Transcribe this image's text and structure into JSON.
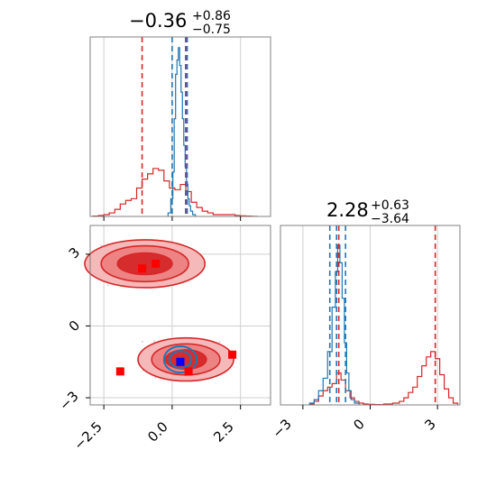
{
  "colors": {
    "red": "#d62728",
    "blue": "#1f77b4",
    "marker_red": "#ff0000",
    "marker_blue": "#0000ff",
    "grid": "#cfcfcf",
    "axes": "#808080"
  },
  "chart_data": [
    {
      "type": "histogram",
      "panel": "top-left",
      "title": {
        "value": "−0.36",
        "plus": "+0.86",
        "minus": "−0.75"
      },
      "xlim": [
        -3.0,
        3.6
      ],
      "grid": true,
      "red_vlines": [
        -1.1,
        0.5
      ],
      "blue_vlines": [
        0.0,
        0.55
      ],
      "purple_vline": 0.5,
      "red_hist": {
        "x": [
          -2.8,
          -2.6,
          -2.4,
          -2.2,
          -2.0,
          -1.8,
          -1.6,
          -1.4,
          -1.2,
          -1.0,
          -0.8,
          -0.6,
          -0.4,
          -0.2,
          0.0,
          0.2,
          0.4,
          0.6,
          0.8,
          1.0,
          1.2,
          1.4,
          1.6,
          1.8,
          2.0,
          2.2,
          2.4,
          2.6,
          2.8,
          3.0
        ],
        "y": [
          0.002,
          0.005,
          0.01,
          0.02,
          0.04,
          0.07,
          0.09,
          0.1,
          0.16,
          0.21,
          0.24,
          0.27,
          0.26,
          0.2,
          0.16,
          0.15,
          0.18,
          0.14,
          0.08,
          0.05,
          0.03,
          0.02,
          0.01,
          0.01,
          0.01,
          0.01,
          0.005,
          0.003,
          0.002,
          0.001
        ]
      },
      "blue_hist": {
        "x": [
          -0.1,
          0.0,
          0.05,
          0.1,
          0.15,
          0.2,
          0.25,
          0.3,
          0.35,
          0.4,
          0.45,
          0.5,
          0.55,
          0.6,
          0.65,
          0.7,
          0.8
        ],
        "y": [
          0.02,
          0.1,
          0.25,
          0.55,
          0.8,
          0.88,
          0.95,
          0.85,
          0.7,
          0.55,
          0.4,
          0.28,
          0.18,
          0.1,
          0.06,
          0.03,
          0.01
        ]
      }
    },
    {
      "type": "contour",
      "panel": "bottom-left",
      "xlim": [
        -3.0,
        3.6
      ],
      "ylim": [
        -3.3,
        4.2
      ],
      "xticks": [
        "−2.5",
        "0.0",
        "2.5"
      ],
      "yticks": [
        "−3",
        "0",
        "3"
      ],
      "grid": true,
      "red_modes": [
        {
          "cx": -1.0,
          "cy": 2.6,
          "rx": [
            2.2,
            1.6,
            1.0
          ],
          "ry": [
            1.0,
            0.75,
            0.45
          ]
        },
        {
          "cx": 0.5,
          "cy": -1.4,
          "rx": [
            1.75,
            1.25,
            0.75
          ],
          "ry": [
            0.9,
            0.65,
            0.4
          ]
        }
      ],
      "blue_mode": {
        "cx": 0.3,
        "cy": -1.4,
        "rx": [
          0.6,
          0.4
        ],
        "ry": [
          0.55,
          0.35
        ]
      },
      "red_markers": [
        {
          "x": -1.1,
          "y": 2.4
        },
        {
          "x": -0.6,
          "y": 2.6
        },
        {
          "x": 0.6,
          "y": -1.9
        },
        {
          "x": 2.2,
          "y": -1.2
        },
        {
          "x": -1.9,
          "y": -1.9
        }
      ],
      "blue_marker": {
        "x": 0.3,
        "y": -1.5
      }
    },
    {
      "type": "histogram",
      "panel": "bottom-right",
      "title": {
        "value": "2.28",
        "plus": "+0.63",
        "minus": "−3.64"
      },
      "xlim": [
        -4.0,
        4.0
      ],
      "xticks": [
        "−3",
        "0",
        "3"
      ],
      "grid": true,
      "red_vlines": [
        -1.4,
        2.9
      ],
      "blue_vlines": [
        -1.8,
        -1.5,
        -1.1
      ],
      "red_hist": {
        "x": [
          -2.6,
          -2.4,
          -2.2,
          -2.0,
          -1.8,
          -1.6,
          -1.4,
          -1.2,
          -1.0,
          -0.8,
          -0.6,
          -0.4,
          -0.2,
          0.0,
          0.4,
          0.8,
          1.2,
          1.4,
          1.6,
          1.8,
          2.0,
          2.2,
          2.4,
          2.6,
          2.8,
          3.0,
          3.2,
          3.4,
          3.6,
          3.8
        ],
        "y": [
          0.005,
          0.02,
          0.05,
          0.08,
          0.1,
          0.12,
          0.18,
          0.14,
          0.08,
          0.04,
          0.02,
          0.01,
          0.005,
          0.003,
          0.002,
          0.005,
          0.01,
          0.02,
          0.04,
          0.07,
          0.1,
          0.16,
          0.22,
          0.27,
          0.3,
          0.26,
          0.17,
          0.09,
          0.04,
          0.01
        ]
      },
      "blue_hist": {
        "x": [
          -2.6,
          -2.4,
          -2.2,
          -2.0,
          -1.8,
          -1.6,
          -1.5,
          -1.4,
          -1.3,
          -1.2,
          -1.1,
          -1.0,
          -0.9,
          -0.8,
          -0.6
        ],
        "y": [
          0.01,
          0.03,
          0.08,
          0.15,
          0.3,
          0.55,
          0.75,
          0.9,
          0.8,
          0.6,
          0.35,
          0.18,
          0.08,
          0.03,
          0.01
        ]
      }
    }
  ]
}
